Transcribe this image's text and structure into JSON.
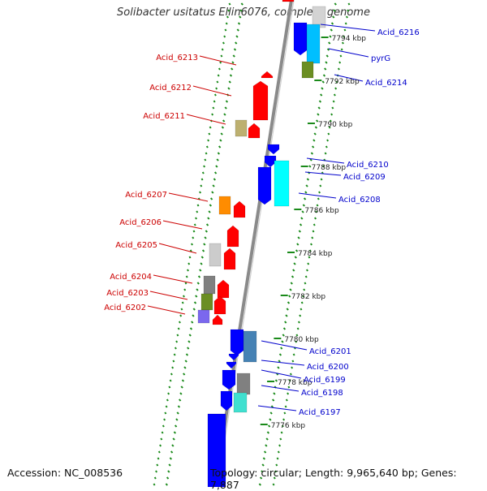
{
  "title": "Solibacter usitatus Ellin6076, complete genome",
  "accession": "Accession: NC_008536",
  "topology": "Topology: circular; Length: 9,965,640 bp; Genes: 7,887",
  "colors": {
    "forward_label": "#cc0000",
    "reverse_label": "#0000cc",
    "backbone": "#8a8a8a",
    "tick": "#1a8a1a",
    "forward_gene": "#ff0000",
    "reverse_gene": "#0000ff"
  },
  "scale_labels": [
    "7794 kbp",
    "7792 kbp",
    "7790 kbp",
    "7788 kbp",
    "7786 kbp",
    "7784 kbp",
    "7782 kbp",
    "7780 kbp",
    "7778 kbp",
    "7776 kbp"
  ],
  "forward_labels": [
    "Acid_6213",
    "Acid_6212",
    "Acid_6211",
    "Acid_6207",
    "Acid_6206",
    "Acid_6205",
    "Acid_6204",
    "Acid_6203",
    "Acid_6202"
  ],
  "reverse_labels": [
    "Acid_6216",
    "pyrG",
    "Acid_6214",
    "Acid_6210",
    "Acid_6209",
    "Acid_6208",
    "Acid_6201",
    "Acid_6200",
    "Acid_6199",
    "Acid_6198",
    "Acid_6197"
  ]
}
